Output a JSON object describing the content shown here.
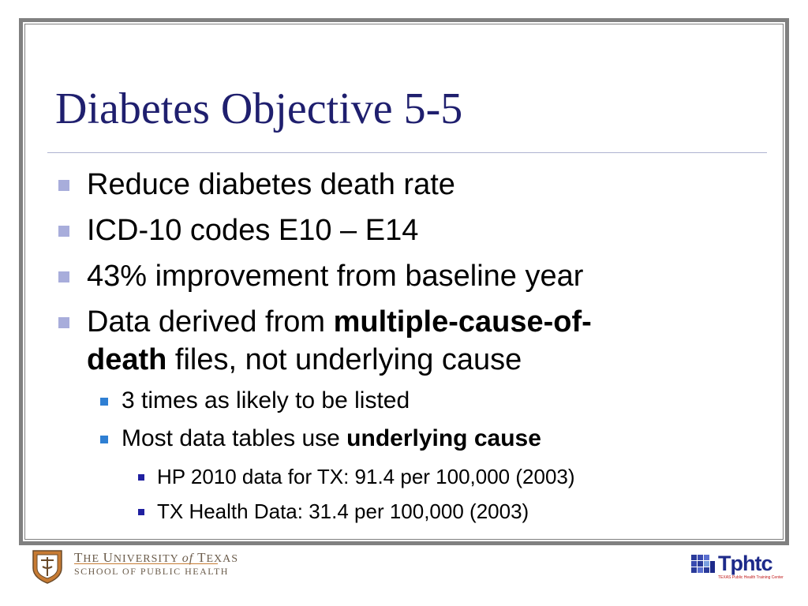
{
  "slide": {
    "title": "Diabetes Objective 5-5",
    "bullets": [
      {
        "text": "Reduce diabetes death rate"
      },
      {
        "text": "ICD-10 codes E10 – E14"
      },
      {
        "text": "43% improvement from baseline year"
      },
      {
        "part1": "Data derived from ",
        "bold": "multiple-cause-of-",
        "bold2": "death",
        "part2": " files, not underlying cause"
      }
    ],
    "sub_bullets": [
      {
        "text": "3 times as likely to be listed"
      },
      {
        "part1": "Most data tables use ",
        "bold": "underlying cause"
      }
    ],
    "sub_sub_bullets": [
      {
        "text": "HP 2010 data for TX: 91.4 per 100,000 (2003)"
      },
      {
        "text": "TX Health Data: 31.4 per 100,000 (2003)"
      }
    ]
  },
  "footer": {
    "ut_line1_a": "T",
    "ut_line1_b": "HE ",
    "ut_line1_c": "U",
    "ut_line1_d": "NIVERSITY ",
    "ut_line1_e": "of",
    "ut_line1_f": " T",
    "ut_line1_g": "EXAS",
    "ut_line2": "SCHOOL OF PUBLIC HEALTH",
    "right_logo_text": "Tphtc",
    "right_logo_sub": "TEXAS Public Health Training Center"
  },
  "colors": {
    "title": "#1f1f6e",
    "bullet_l1": "#a8addb",
    "bullet_l2": "#2f7fd3",
    "bullet_l3": "#2020a0",
    "frame": "#808080"
  },
  "icons": {
    "left_logo": "ut-seal-icon",
    "right_logo": "tphtc-grid-icon"
  }
}
